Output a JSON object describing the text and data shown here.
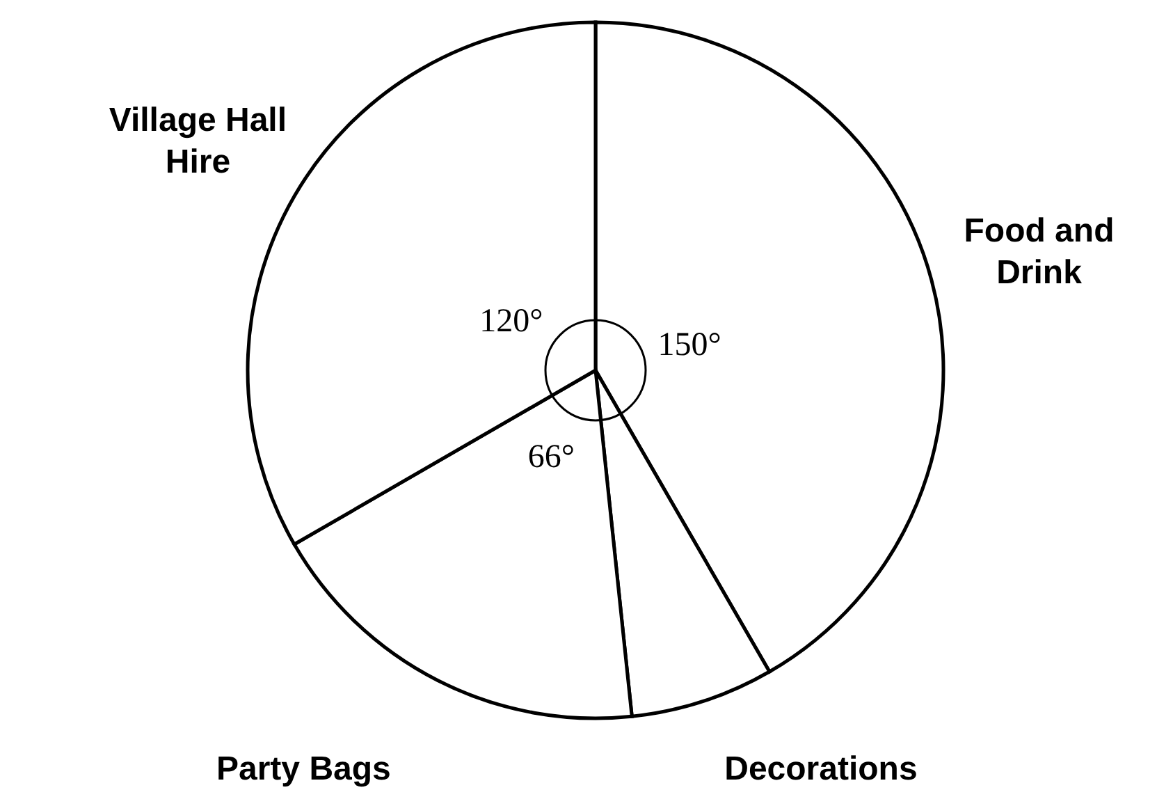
{
  "chart_data": {
    "type": "pie",
    "categories": [
      "Food and Drink",
      "Decorations",
      "Party Bags",
      "Village Hall Hire"
    ],
    "values": [
      150,
      24,
      66,
      120
    ],
    "colors": [
      "#ffffff",
      "#ffffff",
      "#ffffff",
      "#ffffff"
    ],
    "value_labels": [
      "150°",
      null,
      "66°",
      "120°"
    ]
  }
}
